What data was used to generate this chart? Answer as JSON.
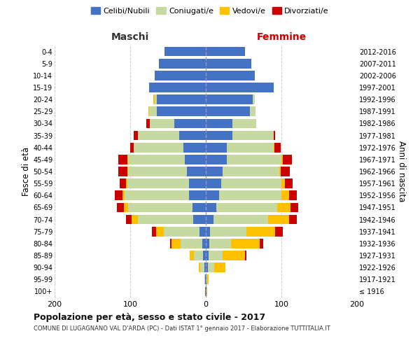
{
  "age_groups": [
    "100+",
    "95-99",
    "90-94",
    "85-89",
    "80-84",
    "75-79",
    "70-74",
    "65-69",
    "60-64",
    "55-59",
    "50-54",
    "45-49",
    "40-44",
    "35-39",
    "30-34",
    "25-29",
    "20-24",
    "15-19",
    "10-14",
    "5-9",
    "0-4"
  ],
  "birth_years": [
    "≤ 1916",
    "1917-1921",
    "1922-1926",
    "1927-1931",
    "1932-1936",
    "1937-1941",
    "1942-1946",
    "1947-1951",
    "1952-1956",
    "1957-1961",
    "1962-1966",
    "1967-1971",
    "1972-1976",
    "1977-1981",
    "1982-1986",
    "1987-1991",
    "1992-1996",
    "1997-2001",
    "2002-2006",
    "2007-2011",
    "2012-2016"
  ],
  "males": {
    "celibi": [
      1,
      1,
      2,
      4,
      5,
      8,
      17,
      18,
      22,
      22,
      25,
      28,
      30,
      35,
      42,
      65,
      65,
      75,
      68,
      62,
      55
    ],
    "coniugati": [
      0,
      1,
      5,
      12,
      28,
      48,
      73,
      85,
      85,
      82,
      78,
      75,
      65,
      55,
      32,
      10,
      3,
      0,
      0,
      0,
      0
    ],
    "vedovi": [
      0,
      0,
      2,
      5,
      12,
      10,
      8,
      5,
      3,
      2,
      1,
      1,
      0,
      0,
      0,
      1,
      1,
      0,
      0,
      0,
      0
    ],
    "divorziati": [
      0,
      0,
      0,
      0,
      2,
      5,
      8,
      10,
      10,
      8,
      12,
      12,
      5,
      5,
      5,
      0,
      0,
      0,
      0,
      0,
      0
    ]
  },
  "females": {
    "nubili": [
      1,
      1,
      3,
      4,
      5,
      6,
      10,
      14,
      18,
      20,
      22,
      28,
      28,
      35,
      35,
      58,
      62,
      90,
      65,
      60,
      52
    ],
    "coniugate": [
      0,
      1,
      8,
      18,
      28,
      48,
      72,
      80,
      82,
      80,
      75,
      72,
      62,
      55,
      32,
      8,
      3,
      0,
      0,
      0,
      0
    ],
    "vedove": [
      1,
      2,
      15,
      30,
      38,
      38,
      28,
      18,
      10,
      5,
      2,
      2,
      1,
      0,
      0,
      0,
      0,
      0,
      0,
      0,
      0
    ],
    "divorziate": [
      0,
      0,
      0,
      2,
      5,
      10,
      10,
      10,
      10,
      10,
      12,
      12,
      8,
      2,
      0,
      0,
      0,
      0,
      0,
      0,
      0
    ]
  },
  "colors": {
    "celibi": "#4472c4",
    "coniugati": "#c5d9a0",
    "vedovi": "#ffc000",
    "divorziati": "#cc0000"
  },
  "xlim": 200,
  "title": "Popolazione per età, sesso e stato civile - 2017",
  "subtitle": "COMUNE DI LUGAGNANO VAL D'ARDA (PC) - Dati ISTAT 1° gennaio 2017 - Elaborazione TUTTITALIA.IT",
  "ylabel_left": "Fasce di età",
  "ylabel_right": "Anni di nascita",
  "maschi_label": "Maschi",
  "femmine_label": "Femmine",
  "legend_labels": [
    "Celibi/Nubili",
    "Coniugati/e",
    "Vedovi/e",
    "Divorziati/e"
  ],
  "background_color": "#ffffff"
}
